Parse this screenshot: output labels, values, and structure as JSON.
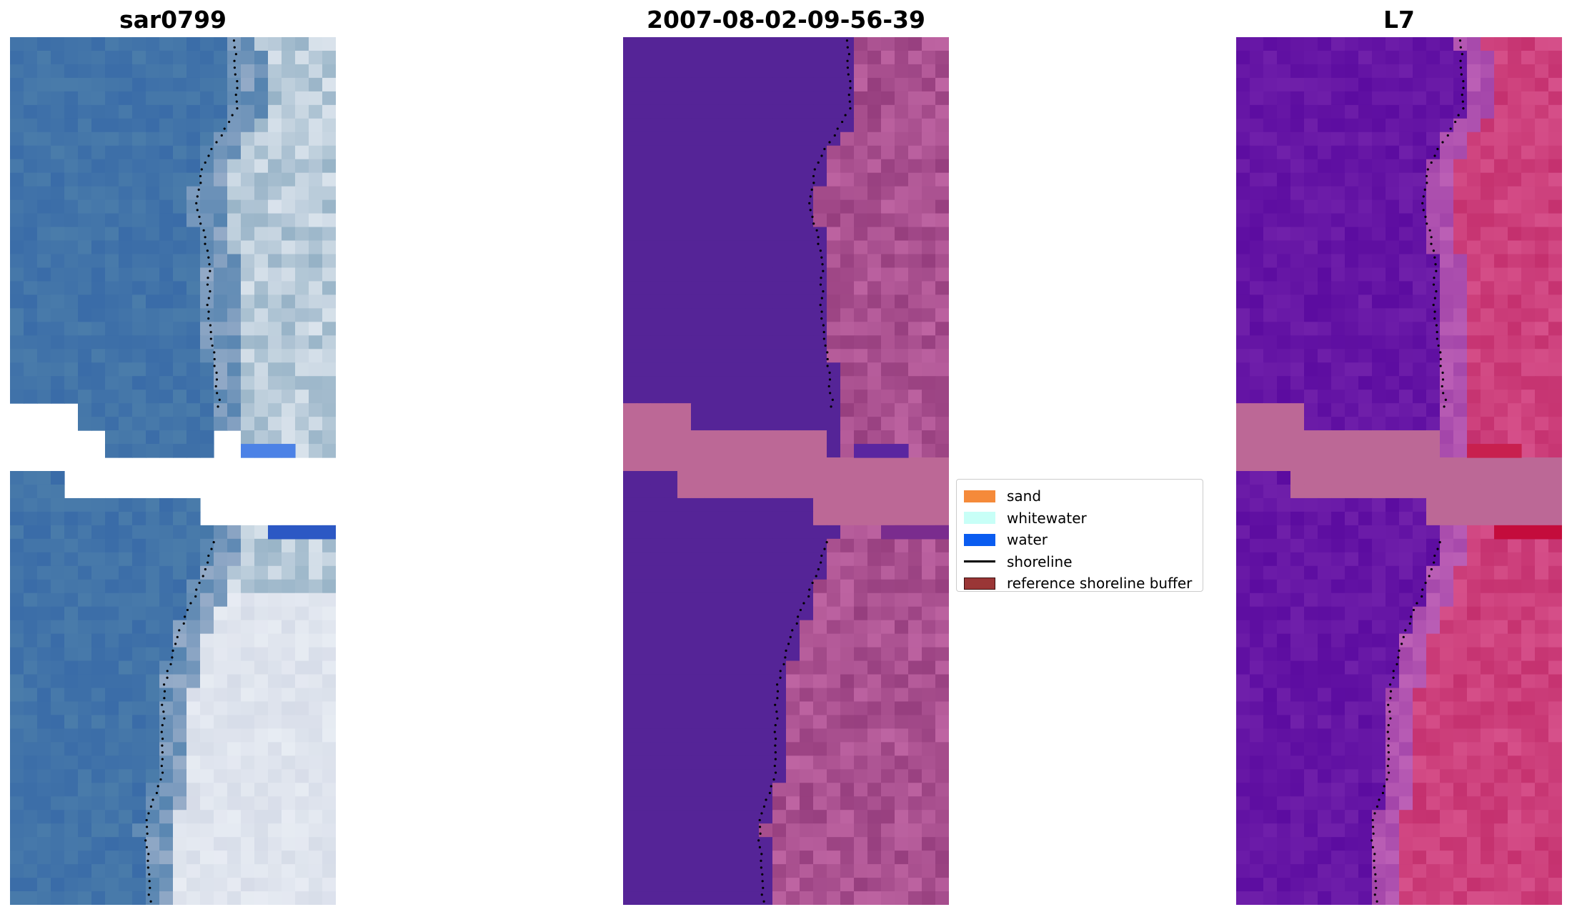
{
  "panels": [
    {
      "title": "sar0799",
      "kind": "rgb"
    },
    {
      "title": "2007-08-02-09-56-39",
      "kind": "classified"
    },
    {
      "title": "L7",
      "kind": "mndwi"
    }
  ],
  "legend": {
    "items": [
      {
        "label": "sand",
        "color": "#f58a3a",
        "type": "patch"
      },
      {
        "label": "whitewater",
        "color": "#c8fff7",
        "type": "patch"
      },
      {
        "label": "water",
        "color": "#0a5cf0",
        "type": "patch"
      },
      {
        "label": "shoreline",
        "color": "#000000",
        "type": "line"
      },
      {
        "label": "reference shoreline buffer",
        "color": "#9a3636",
        "type": "patch"
      }
    ]
  },
  "colors": {
    "nodata": "#ffffff",
    "buffer": "#bc6896",
    "classified_water": "#552497",
    "shoreline_dots": "#000000"
  }
}
